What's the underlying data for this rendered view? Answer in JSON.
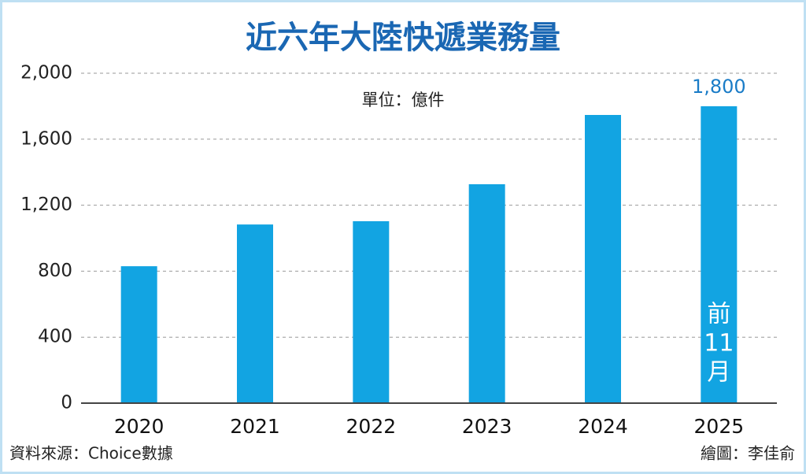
{
  "chart_data": {
    "type": "bar",
    "title": "近六年大陸快遞業務量",
    "subtitle": "單位：億件",
    "categories": [
      "2020",
      "2021",
      "2022",
      "2023",
      "2024",
      "2025"
    ],
    "values": [
      830,
      1083,
      1103,
      1327,
      1747,
      1800
    ],
    "value_labels": [
      null,
      null,
      null,
      null,
      null,
      "1,800"
    ],
    "annotation": [
      "前",
      "11",
      "月"
    ],
    "color": "#12a4e2",
    "ylim": [
      0,
      2000
    ],
    "yticks": [
      0,
      400,
      800,
      {
        "value": 1200,
        "label": "1,200"
      },
      {
        "value": 1600,
        "label": "1,600"
      },
      {
        "value": 2000,
        "label": "2,000"
      }
    ],
    "grid": true,
    "source": "資料來源：Choice數據",
    "credit": "繪圖：李佳俞"
  }
}
